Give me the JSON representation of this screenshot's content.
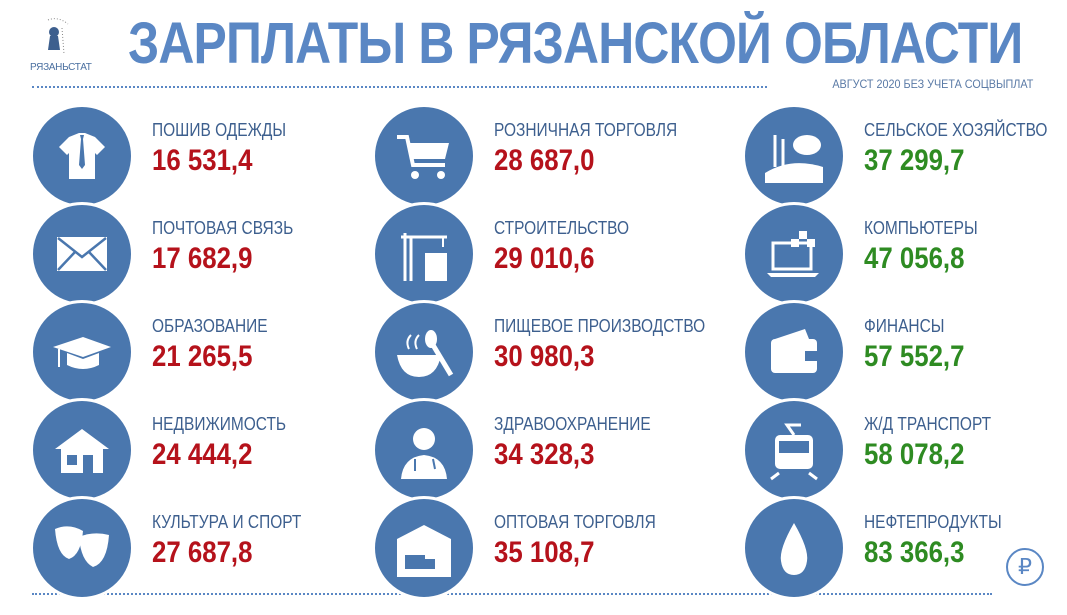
{
  "logo": {
    "text": "РЯЗАНЬСТАТ"
  },
  "title": "ЗАРПЛАТЫ В РЯЗАНСКОЙ ОБЛАСТИ",
  "subtitle": "АВГУСТ 2020 БЕЗ УЧЕТА СОЦВЫПЛАТ",
  "colors": {
    "icon_bg": "#4a77ae",
    "low": "#b5121b",
    "high": "#2e8b22",
    "title": "#5a87c4"
  },
  "items": [
    {
      "label": "ПОШИВ ОДЕЖДЫ",
      "value": "16 531,4",
      "icon": "shirt-tie-icon",
      "color": "#b5121b"
    },
    {
      "label": "ПОЧТОВАЯ СВЯЗЬ",
      "value": "17 682,9",
      "icon": "envelope-icon",
      "color": "#b5121b"
    },
    {
      "label": "ОБРАЗОВАНИЕ",
      "value": "21 265,5",
      "icon": "graduation-cap-icon",
      "color": "#b5121b"
    },
    {
      "label": "НЕДВИЖИМОСТЬ",
      "value": "24 444,2",
      "icon": "house-icon",
      "color": "#b5121b"
    },
    {
      "label": "КУЛЬТУРА И СПОРТ",
      "value": "27 687,8",
      "icon": "theater-masks-icon",
      "color": "#b5121b"
    },
    {
      "label": "РОЗНИЧНАЯ ТОРГОВЛЯ",
      "value": "28 687,0",
      "icon": "shopping-cart-icon",
      "color": "#b5121b"
    },
    {
      "label": "СТРОИТЕЛЬСТВО",
      "value": "29 010,6",
      "icon": "crane-building-icon",
      "color": "#b5121b"
    },
    {
      "label": "ПИЩЕВОЕ ПРОИЗВОДСТВО",
      "value": "30 980,3",
      "icon": "bowl-spoon-icon",
      "color": "#b5121b"
    },
    {
      "label": "ЗДРАВООХРАНЕНИЕ",
      "value": "34 328,3",
      "icon": "doctor-icon",
      "color": "#b5121b"
    },
    {
      "label": "ОПТОВАЯ ТОРГОВЛЯ",
      "value": "35 108,7",
      "icon": "warehouse-truck-icon",
      "color": "#b5121b"
    },
    {
      "label": "СЕЛЬСКОЕ ХОЗЯЙСТВО",
      "value": "37 299,7",
      "icon": "farm-icon",
      "color": "#2e8b22"
    },
    {
      "label": "КОМПЬЮТЕРЫ",
      "value": "47 056,8",
      "icon": "laptop-icon",
      "color": "#2e8b22"
    },
    {
      "label": "ФИНАНСЫ",
      "value": "57 552,7",
      "icon": "wallet-icon",
      "color": "#2e8b22"
    },
    {
      "label": "Ж/Д ТРАНСПОРТ",
      "value": "58 078,2",
      "icon": "train-icon",
      "color": "#2e8b22"
    },
    {
      "label": "НЕФТЕПРОДУКТЫ",
      "value": "83 366,3",
      "icon": "oil-drop-icon",
      "color": "#2e8b22"
    }
  ],
  "currency_icon": "ruble-icon"
}
